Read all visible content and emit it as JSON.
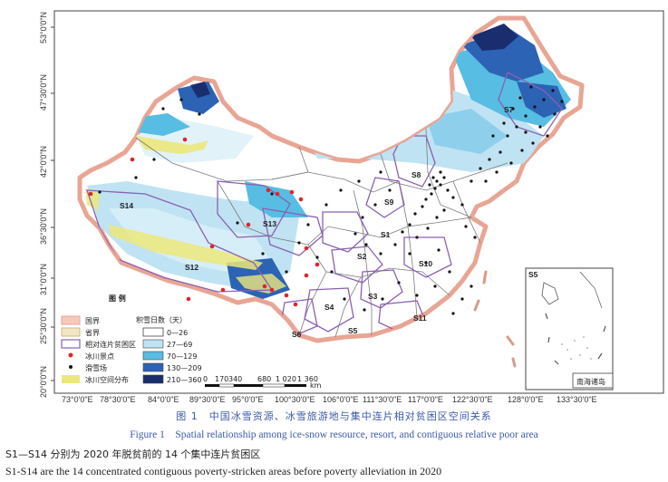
{
  "map": {
    "lat_labels": [
      "53°0'0\"N",
      "47°30'0\"N",
      "42°0'0\"N",
      "36°30'0\"N",
      "31°0'0\"N",
      "25°30'0\"N",
      "20°0'0\"N"
    ],
    "lon_labels": [
      "73°0'0\"E",
      "78°30'0\"E",
      "84°0'0\"E",
      "89°30'0\"E",
      "95°0'0\"E",
      "100°30'0\"E",
      "106°0'0\"E",
      "111°30'0\"E",
      "117°0'0\"E",
      "122°30'0\"E",
      "128°0'0\"E",
      "133°30'0\"E"
    ],
    "regions": [
      "S1",
      "S2",
      "S3",
      "S4",
      "S5",
      "S6",
      "S7",
      "S8",
      "S9",
      "S10",
      "S11",
      "S12",
      "S13",
      "S14"
    ],
    "inset_region": "S5",
    "inset_label": "南海诸岛",
    "scale_labels": [
      "0",
      "170",
      "340",
      "",
      "680",
      "1 020",
      "1 360"
    ],
    "scale_unit": "km"
  },
  "legend": {
    "title": "图 例",
    "snow_title": "积雪日数（天）",
    "items": [
      {
        "label": "国界",
        "color": "#e9a594"
      },
      {
        "label": "省界",
        "color": "#f2e6c4"
      },
      {
        "label": "相对连片贫困区",
        "color": "#8b5fb3"
      },
      {
        "label": "冰川景点",
        "color": "#e0242b"
      },
      {
        "label": "滑雪场",
        "color": "#111111"
      },
      {
        "label": "冰川空间分布",
        "color": "#ece77a"
      }
    ],
    "snow_classes": [
      {
        "label": "0—26",
        "color": "#ffffff"
      },
      {
        "label": "27—69",
        "color": "#bfe3f2"
      },
      {
        "label": "70—129",
        "color": "#57bde3"
      },
      {
        "label": "130—209",
        "color": "#2c63b4"
      },
      {
        "label": "210—360",
        "color": "#1a2d6e"
      }
    ]
  },
  "caption": {
    "zh": "图 1　中国冰雪资源、冰雪旅游地与集中连片相对贫困区空间关系",
    "en": "Figure 1　Spatial relationship among ice-snow resource, resort, and contiguous relative poor area"
  },
  "notes": {
    "zh": "S1—S14 分别为 2020 年脱贫前的 14 个集中连片贫困区",
    "en": "S1-S14 are the 14 concentrated contiguous poverty-stricken areas before poverty alleviation in 2020"
  }
}
